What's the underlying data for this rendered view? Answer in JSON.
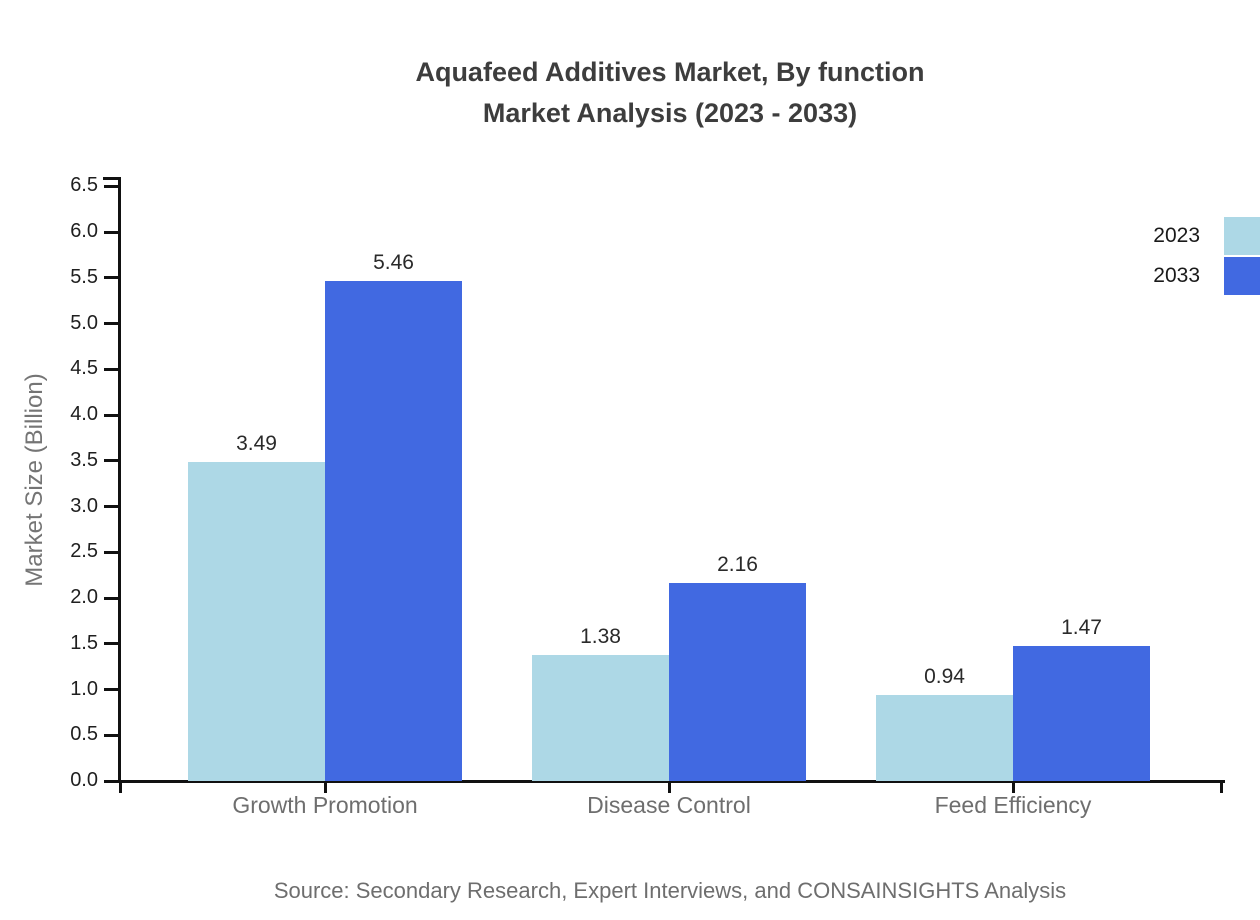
{
  "title": {
    "line1": "Aquafeed Additives Market, By function",
    "line2": "Market Analysis (2023 - 2033)"
  },
  "source": "Source: Secondary Research, Expert Interviews, and CONSAINSIGHTS Analysis",
  "chart_data": {
    "type": "bar",
    "title": "Aquafeed Additives Market, By function Market Analysis (2023 - 2033)",
    "categories": [
      "Growth Promotion",
      "Disease Control",
      "Feed Efficiency"
    ],
    "series": [
      {
        "name": "2023",
        "color": "#ADD8E6",
        "values": [
          3.49,
          1.38,
          0.94
        ]
      },
      {
        "name": "2033",
        "color": "#4169E1",
        "values": [
          5.46,
          2.16,
          1.47
        ]
      }
    ],
    "xlabel": "",
    "ylabel": "Market Size (Billion)",
    "ylim": [
      0,
      6.5
    ],
    "ytick_step": 0.5,
    "ytick_labels": [
      "0.0",
      "0.5",
      "1.0",
      "1.5",
      "2.0",
      "2.5",
      "3.0",
      "3.5",
      "4.0",
      "4.5",
      "5.0",
      "5.5",
      "6.0",
      "6.5"
    ],
    "value_labels": [
      "3.49",
      "5.46",
      "1.38",
      "2.16",
      "0.94",
      "1.47"
    ],
    "grid": false,
    "legend_position": "top-right",
    "axis_color": "#111111",
    "text_color_dark": "#1f1f1f",
    "text_color_gray": "#6e6e6e"
  }
}
